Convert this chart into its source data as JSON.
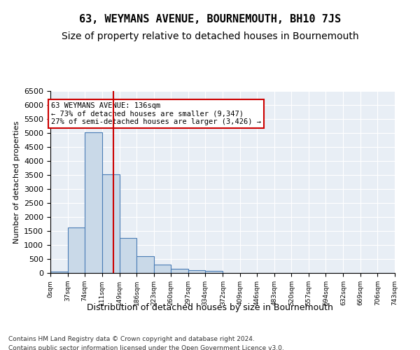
{
  "title": "63, WEYMANS AVENUE, BOURNEMOUTH, BH10 7JS",
  "subtitle": "Size of property relative to detached houses in Bournemouth",
  "xlabel": "Distribution of detached houses by size in Bournemouth",
  "ylabel": "Number of detached properties",
  "footnote1": "Contains HM Land Registry data © Crown copyright and database right 2024.",
  "footnote2": "Contains public sector information licensed under the Open Government Licence v3.0.",
  "annotation_line1": "63 WEYMANS AVENUE: 136sqm",
  "annotation_line2": "← 73% of detached houses are smaller (9,347)",
  "annotation_line3": "27% of semi-detached houses are larger (3,426) →",
  "bar_color": "#c9d9e8",
  "bar_edge_color": "#4a7db5",
  "redline_color": "#cc0000",
  "annotation_box_color": "#cc0000",
  "background_color": "#e8eef5",
  "bin_labels": [
    "0sqm",
    "37sqm",
    "74sqm",
    "111sqm",
    "149sqm",
    "186sqm",
    "223sqm",
    "260sqm",
    "297sqm",
    "334sqm",
    "372sqm",
    "409sqm",
    "446sqm",
    "483sqm",
    "520sqm",
    "557sqm",
    "594sqm",
    "632sqm",
    "669sqm",
    "706sqm",
    "743sqm"
  ],
  "bar_values": [
    50,
    1620,
    5020,
    3520,
    1260,
    610,
    290,
    145,
    105,
    70,
    0,
    0,
    0,
    0,
    0,
    0,
    0,
    0,
    0,
    0
  ],
  "redline_x": 136,
  "bin_edges": [
    0,
    37,
    74,
    111,
    149,
    186,
    223,
    260,
    297,
    334,
    372,
    409,
    446,
    483,
    520,
    557,
    594,
    632,
    669,
    706,
    743
  ],
  "ylim": [
    0,
    6500
  ],
  "grid_color": "#ffffff",
  "title_fontsize": 11,
  "subtitle_fontsize": 10
}
